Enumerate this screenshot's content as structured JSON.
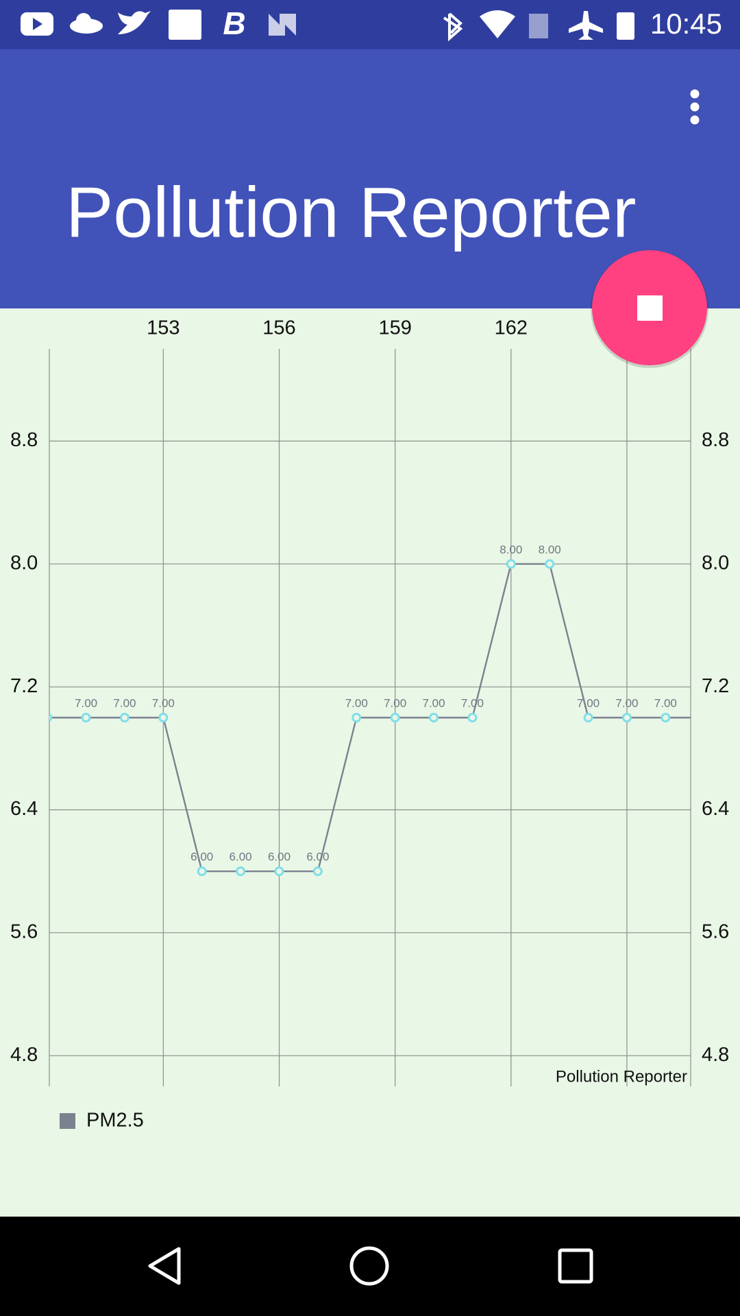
{
  "status_bar": {
    "time": "10:45"
  },
  "app_bar": {
    "title": "Pollution Reporter"
  },
  "chart_data": {
    "type": "line",
    "description": "Pollution Reporter",
    "x": [
      150,
      151,
      152,
      153,
      154,
      155,
      156,
      157,
      158,
      159,
      160,
      161,
      162,
      163,
      164,
      165,
      166,
      167
    ],
    "series": [
      {
        "name": "PM2.5",
        "color": "#7b818f",
        "marker_color": "#80deea",
        "values": [
          7,
          7,
          7,
          7,
          6,
          6,
          6,
          6,
          7,
          7,
          7,
          7,
          8,
          8,
          7,
          7,
          7,
          7
        ],
        "value_labels": [
          null,
          "7.00",
          "7.00",
          "7.00",
          "6.00",
          "6.00",
          "6.00",
          "6.00",
          "7.00",
          "7.00",
          "7.00",
          "7.00",
          "8.00",
          "8.00",
          "7.00",
          "7.00",
          "7.00",
          null
        ]
      }
    ],
    "xlim": [
      150.05,
      166.65
    ],
    "xticks": [
      153,
      156,
      159,
      162,
      165
    ],
    "ylim": [
      4.6,
      9.4
    ],
    "yticks": [
      4.8,
      5.6,
      6.4,
      7.2,
      {
        "value": 8,
        "label": "8.0"
      },
      8.8
    ],
    "grid": true,
    "legend": "bottom-left"
  }
}
